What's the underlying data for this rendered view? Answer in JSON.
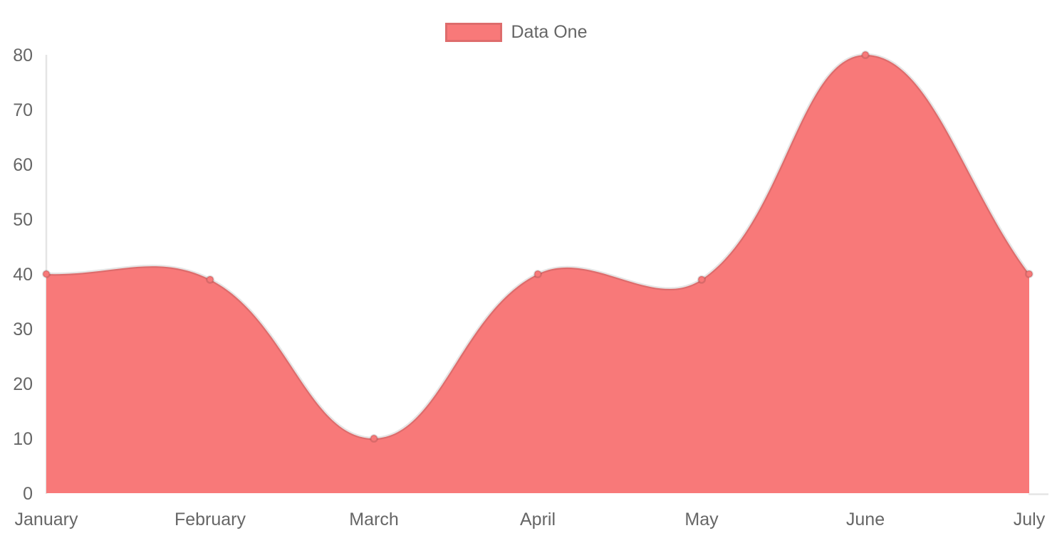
{
  "chart_data": {
    "type": "area",
    "categories": [
      "January",
      "February",
      "March",
      "April",
      "May",
      "June",
      "July"
    ],
    "series": [
      {
        "name": "Data One",
        "values": [
          40,
          39,
          10,
          40,
          39,
          80,
          40
        ]
      }
    ],
    "title": "",
    "xlabel": "",
    "ylabel": "",
    "ylim": [
      0,
      80
    ],
    "y_tick_step": 10,
    "y_tick_labels": [
      "0",
      "10",
      "20",
      "30",
      "40",
      "50",
      "60",
      "70",
      "80"
    ],
    "legend_position": "top",
    "grid": false,
    "line_style": "smooth-bezier-tension-0.4",
    "colors": {
      "area_fill": "#f87979",
      "line_stroke": "rgba(0,0,0,0.10)",
      "point_fill": "#f87979",
      "point_border": "rgba(0,0,0,0.12)",
      "axis_line": "rgba(0,0,0,0.10)",
      "tick_text": "#666666",
      "legend_text": "#666666",
      "background": "#ffffff"
    }
  }
}
